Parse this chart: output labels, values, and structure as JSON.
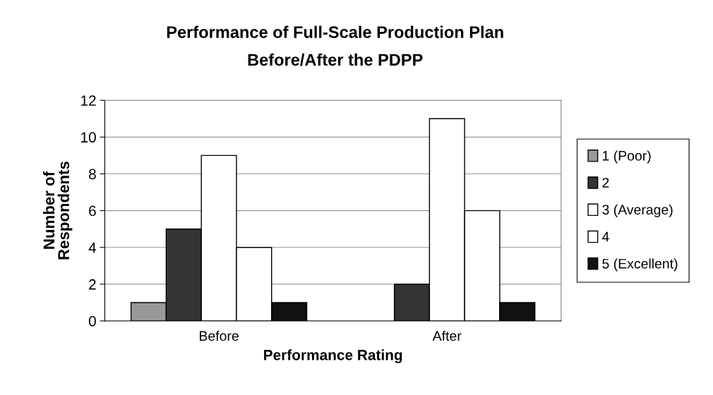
{
  "chart_data": {
    "type": "bar",
    "title": "Performance of Full-Scale Production Plan",
    "subtitle": "Before/After the PDPP",
    "xlabel": "Performance Rating",
    "ylabel": "Number of\nRespondents",
    "categories": [
      "Before",
      "After"
    ],
    "series": [
      {
        "name": "1 (Poor)",
        "color": "#999999",
        "values": [
          1,
          null
        ]
      },
      {
        "name": "2",
        "color": "#333333",
        "values": [
          5,
          2
        ]
      },
      {
        "name": "3 (Average)",
        "color": "#ffffff",
        "values": [
          9,
          11
        ]
      },
      {
        "name": "4",
        "color": "#ffffff",
        "values": [
          4,
          6
        ]
      },
      {
        "name": "5 (Excellent)",
        "color": "#111111",
        "values": [
          1,
          1
        ]
      }
    ],
    "ylim": [
      0,
      12
    ],
    "yticks": [
      0,
      2,
      4,
      6,
      8,
      10,
      12
    ],
    "grid": "y",
    "legend": "right"
  }
}
